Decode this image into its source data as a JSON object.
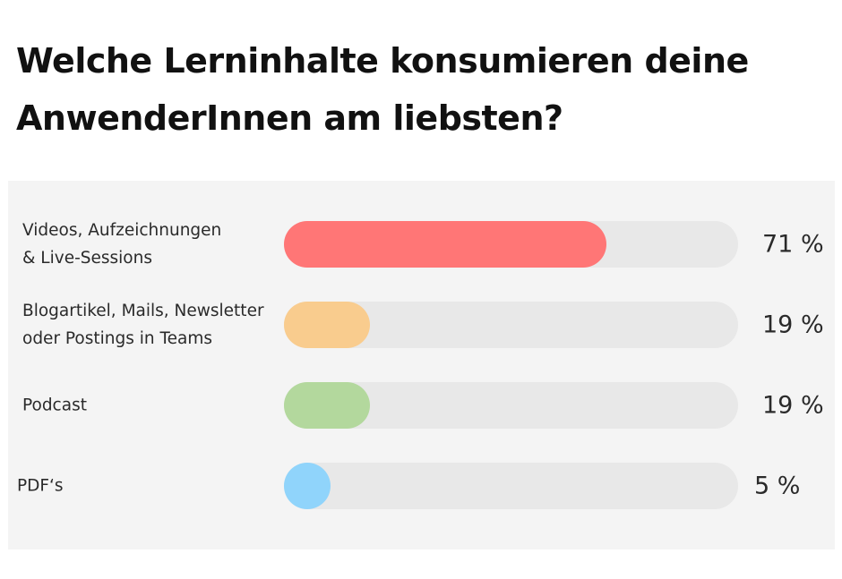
{
  "title": "Welche Lerninhalte konsumieren deine AnwenderInnen am liebsten?",
  "chart_data": {
    "type": "bar",
    "orientation": "horizontal",
    "title": "Welche Lerninhalte konsumieren deine AnwenderInnen am liebsten?",
    "categories": [
      "Videos, Aufzeichnungen\n& Live-Sessions",
      "Blogartikel, Mails, Newsletter\noder Postings in Teams",
      "Podcast",
      "PDF‘s"
    ],
    "values": [
      71,
      19,
      19,
      5
    ],
    "value_labels": [
      "71 %",
      "19 %",
      "19 %",
      "5 %"
    ],
    "unit": "%",
    "xlim": [
      0,
      100
    ],
    "colors": [
      "#ff7676",
      "#f9cc8e",
      "#b3d89d",
      "#90d4fb"
    ],
    "track_color": "#e8e8e8",
    "background": "#f4f4f4",
    "grid": false,
    "legend": "none"
  }
}
